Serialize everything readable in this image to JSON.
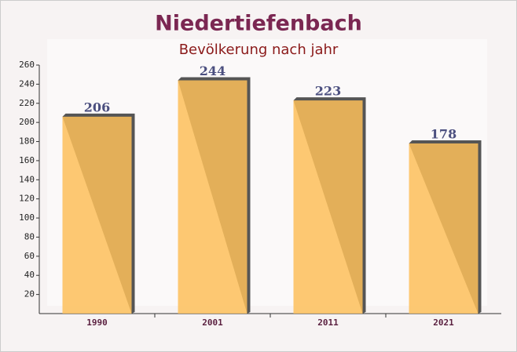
{
  "chart_data": {
    "type": "bar",
    "title": "Niedertiefenbach",
    "subtitle": "Bevölkerung nach jahr",
    "categories": [
      "1990",
      "2001",
      "2011",
      "2021"
    ],
    "values": [
      206,
      244,
      223,
      178
    ],
    "color": "#fdbf5a",
    "ylim": [
      0,
      260
    ],
    "yticks": [
      20,
      40,
      60,
      80,
      100,
      120,
      140,
      160,
      180,
      200,
      220,
      240,
      260
    ]
  }
}
